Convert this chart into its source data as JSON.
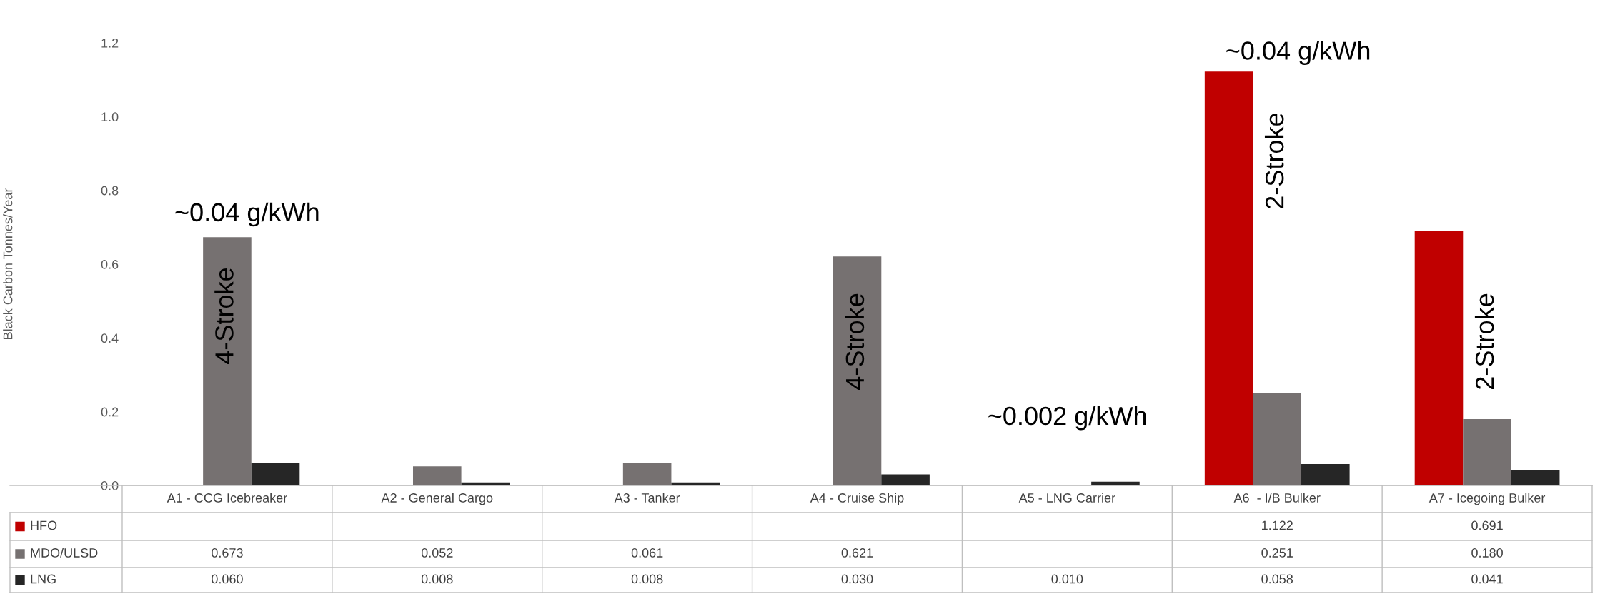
{
  "chart_data": {
    "type": "bar",
    "ylabel": "Black Carbon Tonnes/Year",
    "categories": [
      "A1 - CCG Icebreaker",
      "A2 - General Cargo",
      "A3 - Tanker",
      "A4 - Cruise Ship",
      "A5 - LNG Carrier",
      "A6  - I/B Bulker",
      "A7 - Icegoing Bulker"
    ],
    "series": [
      {
        "name": "HFO",
        "color": "#c00000",
        "values": [
          null,
          null,
          null,
          null,
          null,
          1.122,
          0.691
        ],
        "value_labels": [
          null,
          null,
          null,
          null,
          null,
          "1.122",
          "0.691"
        ]
      },
      {
        "name": "MDO/ULSD",
        "color": "#767171",
        "values": [
          0.673,
          0.052,
          0.061,
          0.621,
          null,
          0.251,
          0.18
        ],
        "value_labels": [
          "0.673",
          "0.052",
          "0.061",
          "0.621",
          null,
          "0.251",
          "0.180"
        ]
      },
      {
        "name": "LNG",
        "color": "#262626",
        "values": [
          0.06,
          0.008,
          0.008,
          0.03,
          0.01,
          0.058,
          0.041
        ],
        "value_labels": [
          "0.060",
          "0.008",
          "0.008",
          "0.030",
          "0.010",
          "0.058",
          "0.041"
        ]
      }
    ],
    "ylim": [
      0,
      1.2
    ],
    "yticks": [
      {
        "value": 0,
        "label": "0.0"
      },
      {
        "value": 0.2,
        "label": "0.2"
      },
      {
        "value": 0.4,
        "label": "0.4"
      },
      {
        "value": 0.6,
        "label": "0.6"
      },
      {
        "value": 0.8,
        "label": "0.8"
      },
      {
        "value": 1.0,
        "label": "1.0"
      },
      {
        "value": 1.2,
        "label": "1.2"
      }
    ],
    "grid": false,
    "annotations": [
      "~0.04 g/kWh",
      "4-Stroke",
      "4-Stroke",
      "~0.002 g/kWh",
      "~0.04 g/kWh",
      "2-Stroke",
      "2-Stroke"
    ],
    "legend": "bottom left"
  }
}
